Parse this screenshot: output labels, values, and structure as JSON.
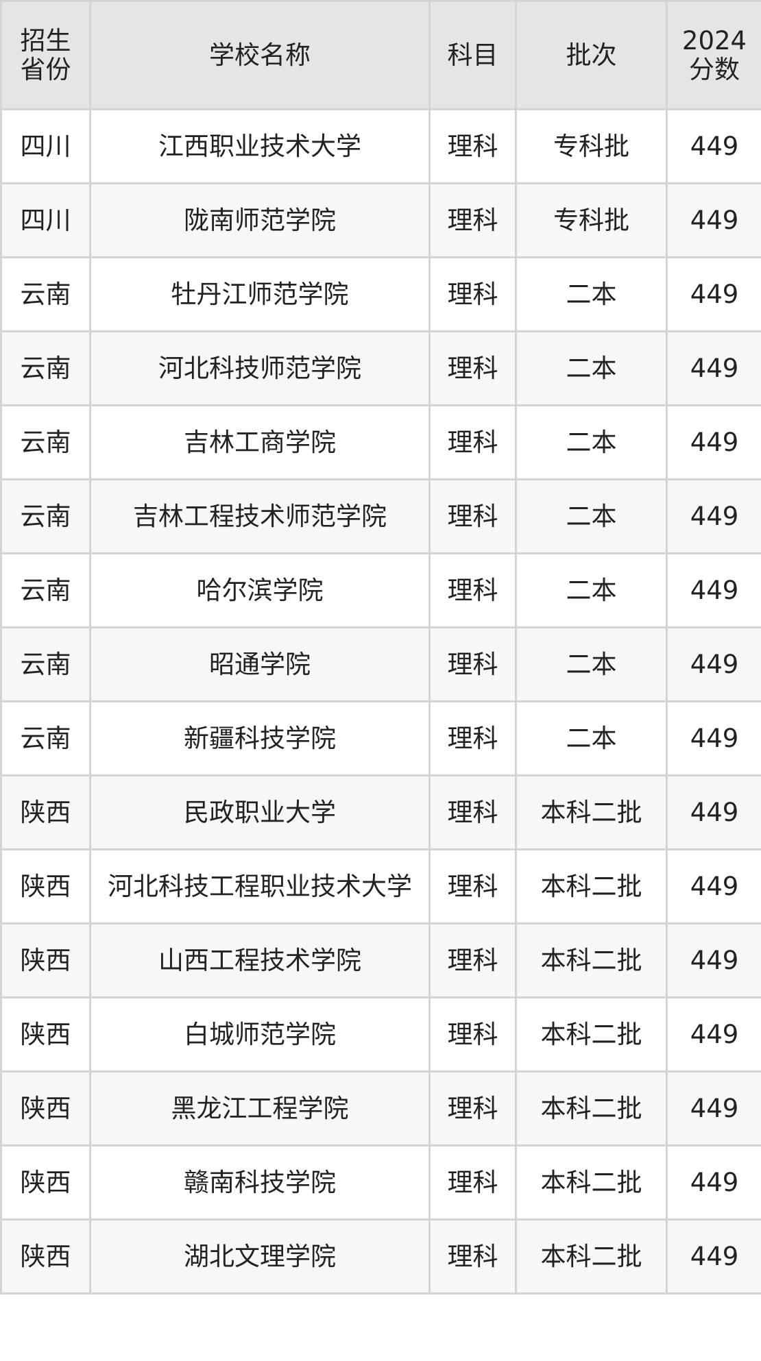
{
  "table": {
    "headers": [
      "招生省份",
      "学校名称",
      "科目",
      "批次",
      "2024分数"
    ],
    "header_lines": [
      [
        "招生",
        "省份"
      ],
      [
        "学校名称"
      ],
      [
        "科目"
      ],
      [
        "批次"
      ],
      [
        "2024",
        "分数"
      ]
    ],
    "rows": [
      [
        "四川",
        "江西职业技术大学",
        "理科",
        "专科批",
        "449"
      ],
      [
        "四川",
        "陇南师范学院",
        "理科",
        "专科批",
        "449"
      ],
      [
        "云南",
        "牡丹江师范学院",
        "理科",
        "二本",
        "449"
      ],
      [
        "云南",
        "河北科技师范学院",
        "理科",
        "二本",
        "449"
      ],
      [
        "云南",
        "吉林工商学院",
        "理科",
        "二本",
        "449"
      ],
      [
        "云南",
        "吉林工程技术师范学院",
        "理科",
        "二本",
        "449"
      ],
      [
        "云南",
        "哈尔滨学院",
        "理科",
        "二本",
        "449"
      ],
      [
        "云南",
        "昭通学院",
        "理科",
        "二本",
        "449"
      ],
      [
        "云南",
        "新疆科技学院",
        "理科",
        "二本",
        "449"
      ],
      [
        "陕西",
        "民政职业大学",
        "理科",
        "本科二批",
        "449"
      ],
      [
        "陕西",
        "河北科技工程职业技术大学",
        "理科",
        "本科二批",
        "449"
      ],
      [
        "陕西",
        "山西工程技术学院",
        "理科",
        "本科二批",
        "449"
      ],
      [
        "陕西",
        "白城师范学院",
        "理科",
        "本科二批",
        "449"
      ],
      [
        "陕西",
        "黑龙江工程学院",
        "理科",
        "本科二批",
        "449"
      ],
      [
        "陕西",
        "赣南科技学院",
        "理科",
        "本科二批",
        "449"
      ],
      [
        "陕西",
        "湖北文理学院",
        "理科",
        "本科二批",
        "449"
      ]
    ]
  },
  "colors": {
    "header_bg": "#e5e5e5",
    "alt_row_bg": "#f7f7f7",
    "border": "#d4d4d4",
    "text": "#222222"
  }
}
